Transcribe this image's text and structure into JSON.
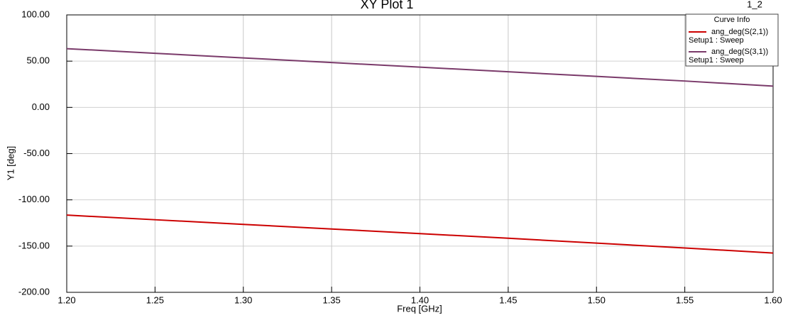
{
  "chart_data": {
    "type": "line",
    "title": "XY Plot 1",
    "plot_id": "1_2",
    "x_label": "Freq [GHz]",
    "y_label": "Y1 [deg]",
    "legend_title": "Curve Info",
    "x": [
      1.2,
      1.25,
      1.3,
      1.35,
      1.4,
      1.45,
      1.5,
      1.55,
      1.6
    ],
    "series": [
      {
        "name": "ang_deg(S(2,1))",
        "solution": "Setup1 : Sweep",
        "color": "#cc0000",
        "values": [
          -116.5,
          -121.5,
          -126.5,
          -131.5,
          -136.5,
          -141.5,
          -146.8,
          -152,
          -157.5
        ]
      },
      {
        "name": "ang_deg(S(3,1))",
        "solution": "Setup1 : Sweep",
        "color": "#7a3a6a",
        "values": [
          63.5,
          58.5,
          53.5,
          48.5,
          43.5,
          38.5,
          33.5,
          28.5,
          23
        ]
      }
    ],
    "xlim": [
      1.2,
      1.6
    ],
    "xticks": [
      {
        "value": 1.2,
        "label": "1.20"
      },
      {
        "value": 1.25,
        "label": "1.25"
      },
      {
        "value": 1.3,
        "label": "1.30"
      },
      {
        "value": 1.35,
        "label": "1.35"
      },
      {
        "value": 1.4,
        "label": "1.40"
      },
      {
        "value": 1.45,
        "label": "1.45"
      },
      {
        "value": 1.5,
        "label": "1.50"
      },
      {
        "value": 1.55,
        "label": "1.55"
      },
      {
        "value": 1.6,
        "label": "1.60"
      }
    ],
    "ylim": [
      -200,
      100
    ],
    "yticks": [
      {
        "value": -200,
        "label": "-200.00"
      },
      {
        "value": -150,
        "label": "-150.00"
      },
      {
        "value": -100,
        "label": "-100.00"
      },
      {
        "value": -50,
        "label": "-50.00"
      },
      {
        "value": 0,
        "label": "0.00"
      },
      {
        "value": 50,
        "label": "50.00"
      },
      {
        "value": 100,
        "label": "100.00"
      }
    ],
    "grid": true
  }
}
